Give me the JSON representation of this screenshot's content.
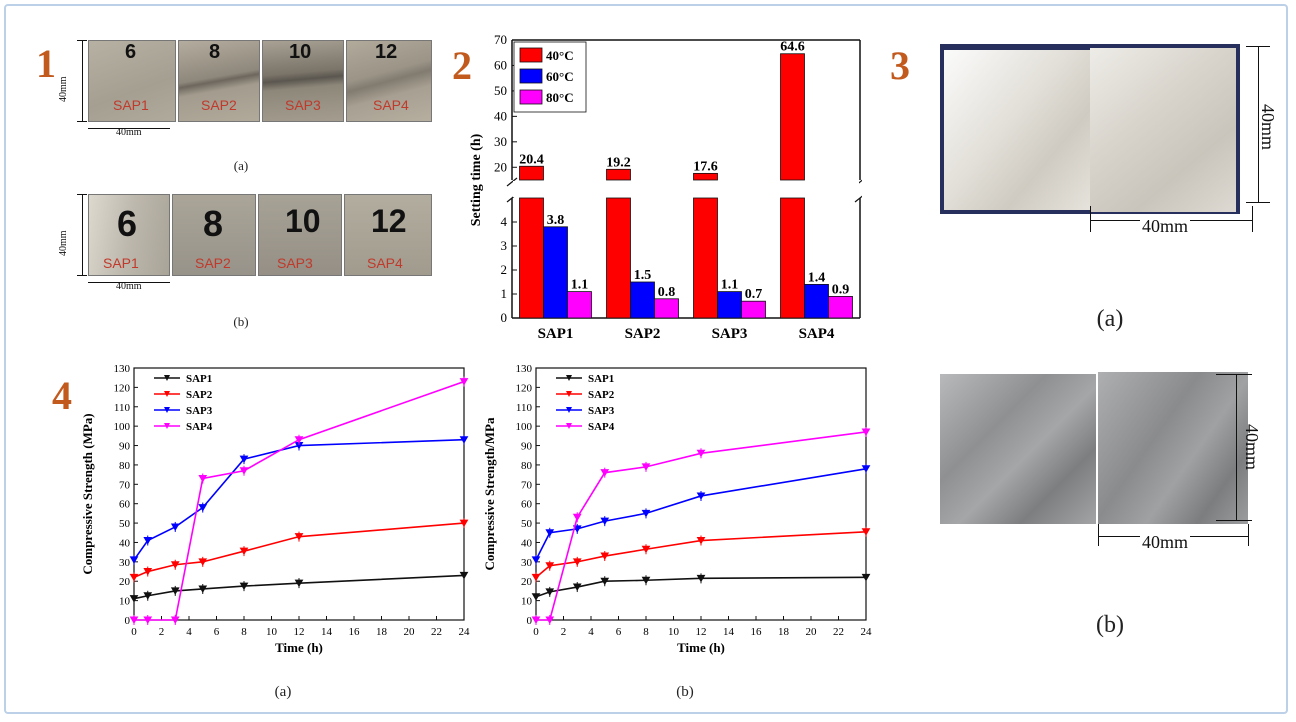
{
  "panels": {
    "p1": {
      "number": "1",
      "top_labels": [
        "6",
        "8",
        "10",
        "12"
      ],
      "bottom_labels": [
        "6",
        "8",
        "10",
        "12"
      ],
      "sample_names": [
        "SAP1",
        "SAP2",
        "SAP3",
        "SAP4"
      ],
      "dim_height": "40mm",
      "dim_width": "40mm",
      "caption_a": "(a)",
      "caption_b": "(b)"
    },
    "p2": {
      "number": "2"
    },
    "p3": {
      "number": "3",
      "dim_height": "40mm",
      "dim_width": "40mm",
      "caption_a": "(a)",
      "caption_b": "(b)"
    },
    "p4": {
      "number": "4",
      "caption_a": "(a)",
      "caption_b": "(b)"
    }
  },
  "colors": {
    "red": "#ff0000",
    "blue": "#0000ff",
    "magenta": "#ff00ff",
    "black": "#111111",
    "panel_number": "#c25a1e"
  },
  "chart_data": [
    {
      "id": "setting-time",
      "type": "bar",
      "categories": [
        "SAP1",
        "SAP2",
        "SAP3",
        "SAP4"
      ],
      "series": [
        {
          "name": "40°C",
          "values": [
            20.4,
            19.2,
            17.6,
            64.6
          ],
          "value_labels": [
            "20.4",
            "19.2",
            "17.6",
            "64.6"
          ]
        },
        {
          "name": "60°C",
          "values": [
            3.8,
            1.5,
            1.1,
            1.4
          ],
          "value_labels": [
            "3.8",
            "1.5",
            "1.1",
            "1.4"
          ]
        },
        {
          "name": "80°C",
          "values": [
            1.1,
            0.8,
            0.7,
            0.9
          ],
          "value_labels": [
            "1.1",
            "0.8",
            "0.7",
            "0.9"
          ]
        }
      ],
      "ylabel": "Setting time (h)",
      "axis_break": true,
      "ylim_lower": [
        0,
        5
      ],
      "ylim_upper": [
        15,
        70
      ],
      "yticks_lower": [
        "0",
        "1",
        "2",
        "3",
        "4"
      ],
      "yticks_upper": [
        "20",
        "30",
        "40",
        "50",
        "60",
        "70"
      ],
      "legend_placement": "top-left"
    },
    {
      "id": "compressive-a",
      "type": "line",
      "x": [
        0,
        1,
        3,
        5,
        8,
        12,
        24
      ],
      "series": [
        {
          "name": "SAP1",
          "values": [
            11,
            12.5,
            15,
            16,
            17.5,
            19,
            23
          ]
        },
        {
          "name": "SAP2",
          "values": [
            22,
            25,
            28.5,
            30,
            35.5,
            43,
            50
          ]
        },
        {
          "name": "SAP3",
          "values": [
            31,
            41,
            48,
            58,
            83,
            90,
            93
          ]
        },
        {
          "name": "SAP4",
          "values": [
            0,
            0,
            0,
            73,
            77,
            93,
            123
          ]
        }
      ],
      "xlabel": "Time (h)",
      "ylabel": "Compressive Strength (MPa)",
      "xlim": [
        0,
        24
      ],
      "ylim": [
        0,
        130
      ],
      "xticks": [
        "0",
        "2",
        "4",
        "6",
        "8",
        "10",
        "12",
        "14",
        "16",
        "18",
        "20",
        "22",
        "24"
      ],
      "yticks": [
        "0",
        "10",
        "20",
        "30",
        "40",
        "50",
        "60",
        "70",
        "80",
        "90",
        "100",
        "110",
        "120",
        "130"
      ],
      "legend_placement": "top-left"
    },
    {
      "id": "compressive-b",
      "type": "line",
      "x": [
        0,
        1,
        3,
        5,
        8,
        12,
        24
      ],
      "series": [
        {
          "name": "SAP1",
          "values": [
            12,
            14.5,
            17,
            20,
            20.5,
            21.5,
            22
          ]
        },
        {
          "name": "SAP2",
          "values": [
            22,
            28,
            30,
            33,
            36.5,
            41,
            45.5
          ]
        },
        {
          "name": "SAP3",
          "values": [
            31,
            45,
            47,
            51,
            55,
            64,
            78
          ]
        },
        {
          "name": "SAP4",
          "values": [
            0,
            0,
            53,
            76,
            79,
            86,
            97
          ]
        }
      ],
      "xlabel": "Time (h)",
      "ylabel": "Compressive Strength/MPa",
      "xlim": [
        0,
        24
      ],
      "ylim": [
        0,
        130
      ],
      "xticks": [
        "0",
        "2",
        "4",
        "6",
        "8",
        "10",
        "12",
        "14",
        "16",
        "18",
        "20",
        "22",
        "24"
      ],
      "yticks": [
        "0",
        "10",
        "20",
        "30",
        "40",
        "50",
        "60",
        "70",
        "80",
        "90",
        "100",
        "110",
        "120",
        "130"
      ],
      "legend_placement": "top-left"
    }
  ]
}
